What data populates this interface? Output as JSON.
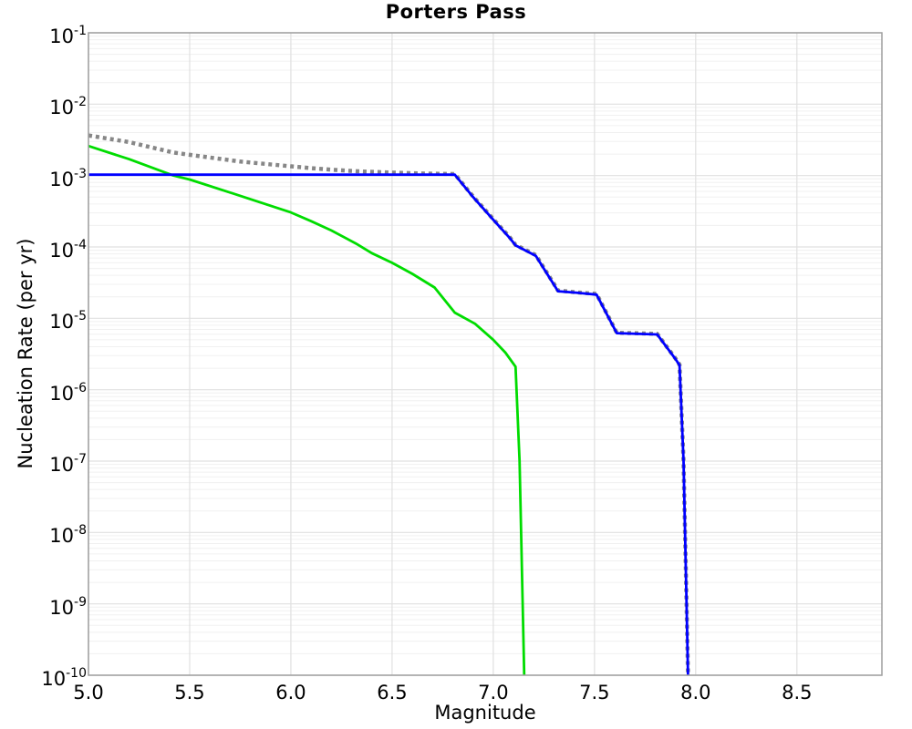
{
  "title": "Porters Pass",
  "chart_data": {
    "type": "line",
    "title": "Porters Pass",
    "xlabel": "Magnitude",
    "ylabel": "Nucleation Rate (per yr)",
    "xlim": [
      5.0,
      8.92
    ],
    "ylim_log10": [
      -10,
      -1
    ],
    "x_ticks": [
      5.0,
      5.5,
      6.0,
      6.5,
      7.0,
      7.5,
      8.0,
      8.5
    ],
    "y_tick_exponents": [
      -1,
      -2,
      -3,
      -4,
      -5,
      -6,
      -7,
      -8,
      -9,
      -10
    ],
    "grid": "major-x, major-y, minor-log-y",
    "legend": "none",
    "colors": {
      "major_grid": "#e0e0e0",
      "minor_grid": "#f0f0f0",
      "border": "#9e9e9e",
      "background": "#ffffff",
      "text": "#000000"
    },
    "series": [
      {
        "name": "gray-dotted-line",
        "color": "#878787",
        "style": "dotted",
        "width": 4.5,
        "points": [
          [
            5.0,
            0.00365
          ],
          [
            5.2,
            0.00295
          ],
          [
            5.42,
            0.0021
          ],
          [
            5.5,
            0.00195
          ],
          [
            5.75,
            0.00157
          ],
          [
            6.0,
            0.00135
          ],
          [
            6.1,
            0.00127
          ],
          [
            6.2,
            0.00121
          ],
          [
            6.32,
            0.00115
          ],
          [
            6.5,
            0.0011
          ],
          [
            6.65,
            0.00107
          ],
          [
            6.81,
            0.00105
          ],
          [
            6.9,
            0.00051
          ],
          [
            7.0,
            0.000245
          ],
          [
            7.08,
            0.000138
          ],
          [
            7.11,
            0.000107
          ],
          [
            7.21,
            7.7e-05
          ],
          [
            7.32,
            2.45e-05
          ],
          [
            7.42,
            2.3e-05
          ],
          [
            7.51,
            2.2e-05
          ],
          [
            7.61,
            6.3e-06
          ],
          [
            7.81,
            6.05e-06
          ],
          [
            7.9,
            2.75e-06
          ],
          [
            7.92,
            2.25e-06
          ],
          [
            7.94,
            1e-07
          ],
          [
            7.955,
            1e-09
          ],
          [
            7.962,
            1e-10
          ]
        ]
      },
      {
        "name": "green-solid-line",
        "color": "#00dc00",
        "style": "solid",
        "width": 2.8,
        "points": [
          [
            5.0,
            0.0026
          ],
          [
            5.2,
            0.0017
          ],
          [
            5.42,
            0.001
          ],
          [
            5.5,
            0.00088
          ],
          [
            5.75,
            0.00052
          ],
          [
            6.0,
            0.000305
          ],
          [
            6.1,
            0.00023
          ],
          [
            6.2,
            0.00017
          ],
          [
            6.32,
            0.000112
          ],
          [
            6.4,
            8.2e-05
          ],
          [
            6.5,
            6e-05
          ],
          [
            6.6,
            4.2e-05
          ],
          [
            6.71,
            2.7e-05
          ],
          [
            6.81,
            1.2e-05
          ],
          [
            6.91,
            8.4e-06
          ],
          [
            7.0,
            5e-06
          ],
          [
            7.06,
            3.3e-06
          ],
          [
            7.11,
            2.1e-06
          ],
          [
            7.13,
            1e-07
          ],
          [
            7.145,
            1e-09
          ],
          [
            7.153,
            1e-10
          ]
        ]
      },
      {
        "name": "blue-solid-line",
        "color": "#0000ff",
        "style": "solid",
        "width": 2.8,
        "points": [
          [
            5.0,
            0.00103
          ],
          [
            6.81,
            0.00103
          ],
          [
            6.9,
            0.0005
          ],
          [
            7.0,
            0.00024
          ],
          [
            7.08,
            0.000135
          ],
          [
            7.11,
            0.000105
          ],
          [
            7.21,
            7.5e-05
          ],
          [
            7.32,
            2.4e-05
          ],
          [
            7.42,
            2.27e-05
          ],
          [
            7.51,
            2.15e-05
          ],
          [
            7.61,
            6.2e-06
          ],
          [
            7.81,
            5.95e-06
          ],
          [
            7.9,
            2.7e-06
          ],
          [
            7.92,
            2.2e-06
          ],
          [
            7.94,
            1e-07
          ],
          [
            7.955,
            1e-09
          ],
          [
            7.962,
            1e-10
          ]
        ]
      }
    ]
  }
}
